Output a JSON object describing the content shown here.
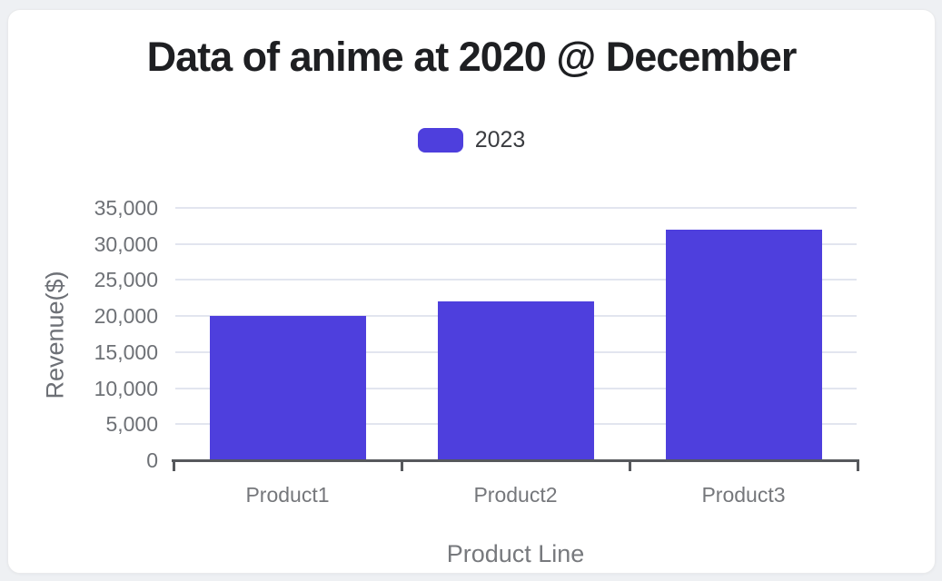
{
  "page": {
    "background": "#eef0f3",
    "card_background": "#ffffff"
  },
  "legend": {
    "items": [
      {
        "label": "2023",
        "color": "#4e3fdd"
      }
    ]
  },
  "chart_data": {
    "type": "bar",
    "title": "Data of anime at 2020 @ December",
    "categories": [
      "Product1",
      "Product2",
      "Product3"
    ],
    "series": [
      {
        "name": "2023",
        "color": "#4e3fdd",
        "values": [
          20000,
          22000,
          32000
        ]
      }
    ],
    "xlabel": "Product Line",
    "ylabel": "Revenue($)",
    "ylim": [
      0,
      35000
    ],
    "ytick_step": 5000,
    "ytick_labels": [
      "0",
      "5,000",
      "10,000",
      "15,000",
      "20,000",
      "25,000",
      "30,000",
      "35,000"
    ],
    "grid": true,
    "legend_position": "top",
    "colors": {
      "grid": "#e2e5ef",
      "axis": "#56585c",
      "tick_text": "#6e7176",
      "title_text": "#1e1f22",
      "axis_title_text": "#6d7076"
    }
  }
}
